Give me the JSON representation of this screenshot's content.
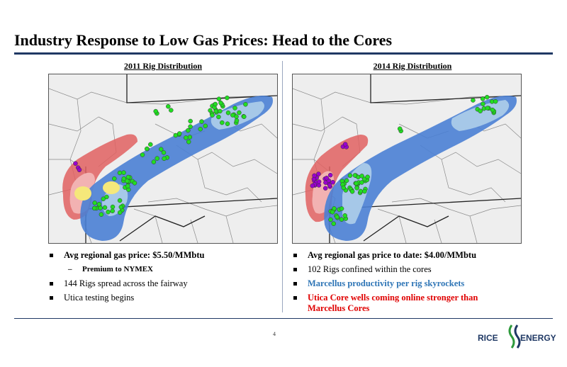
{
  "slide": {
    "title": "Industry Response to Low Gas Prices:  Head to the Cores",
    "page_number": "4"
  },
  "left": {
    "heading": "2011 Rig Distribution",
    "bullets": [
      {
        "text": "Avg regional gas price:  $5.50/MMbtu",
        "style": "bold"
      },
      {
        "text": "Premium to NYMEX",
        "style": "sub"
      },
      {
        "text": "144 Rigs spread across the fairway",
        "style": "normal"
      },
      {
        "text": "Utica testing begins",
        "style": "normal"
      }
    ]
  },
  "right": {
    "heading": "2014 Rig Distribution",
    "bullets": [
      {
        "text": "Avg regional gas price to date:  $4.00/MMbtu",
        "style": "bold"
      },
      {
        "text": "102 Rigs confined within the cores",
        "style": "normal"
      },
      {
        "text": "Marcellus productivity per rig skyrockets",
        "style": "blue"
      },
      {
        "text": "Utica Core wells coming online stronger than",
        "style": "red"
      },
      {
        "text": "Marcellus Cores",
        "style": "red"
      }
    ]
  },
  "logo": {
    "left_word": "RICE",
    "right_word": "ENERGY"
  },
  "colors": {
    "title_rule": "#1f3864",
    "marcellus_fairway": "#4a7fd4",
    "utica_fairway": "#e05a5a",
    "rig_marcellus": "#22dd22",
    "rig_utica": "#9900cc",
    "core_highlight": "#f5e87a"
  }
}
